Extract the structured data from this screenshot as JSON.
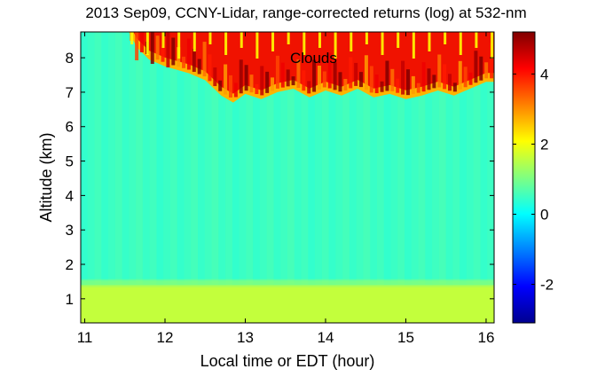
{
  "chart_data": {
    "type": "heatmap",
    "title": "2013 Sep09, CCNY-Lidar, range-corrected returns (log) at 532-nm",
    "xlabel": "Local time or EDT (hour)",
    "ylabel": "Altitude (km)",
    "xlim": [
      10.95,
      16.1
    ],
    "ylim": [
      0.3,
      8.75
    ],
    "xticks": [
      11,
      12,
      13,
      14,
      15,
      16
    ],
    "yticks": [
      1,
      2,
      3,
      4,
      5,
      6,
      7,
      8
    ],
    "colorbar": {
      "range": [
        -3.1,
        5.2
      ],
      "ticks": [
        -2,
        0,
        2,
        4
      ],
      "colormap": "jet",
      "colors": [
        "#00008f",
        "#0000ff",
        "#0080ff",
        "#00ffff",
        "#80ff80",
        "#ffff00",
        "#ff8000",
        "#ff0000",
        "#800000"
      ]
    },
    "background_value": 0.5,
    "boundary_layer": {
      "top_km": 1.4,
      "value": 1.6
    },
    "cloud_base_km": [
      [
        11.55,
        8.75
      ],
      [
        11.65,
        8.3
      ],
      [
        11.8,
        7.95
      ],
      [
        12.0,
        7.75
      ],
      [
        12.3,
        7.55
      ],
      [
        12.5,
        7.35
      ],
      [
        12.7,
        6.9
      ],
      [
        12.85,
        6.7
      ],
      [
        13.0,
        6.95
      ],
      [
        13.2,
        6.8
      ],
      [
        13.4,
        7.0
      ],
      [
        13.6,
        7.1
      ],
      [
        13.8,
        6.85
      ],
      [
        14.0,
        7.05
      ],
      [
        14.2,
        6.9
      ],
      [
        14.4,
        7.1
      ],
      [
        14.6,
        6.85
      ],
      [
        14.8,
        6.95
      ],
      [
        15.0,
        6.8
      ],
      [
        15.2,
        6.9
      ],
      [
        15.4,
        7.05
      ],
      [
        15.6,
        6.9
      ],
      [
        15.8,
        7.1
      ],
      [
        16.0,
        7.3
      ],
      [
        16.1,
        7.3
      ]
    ],
    "cloud_value": 4.3,
    "annotations": [
      {
        "text": "Clouds",
        "x": 13.85,
        "y": 8.0
      }
    ]
  }
}
